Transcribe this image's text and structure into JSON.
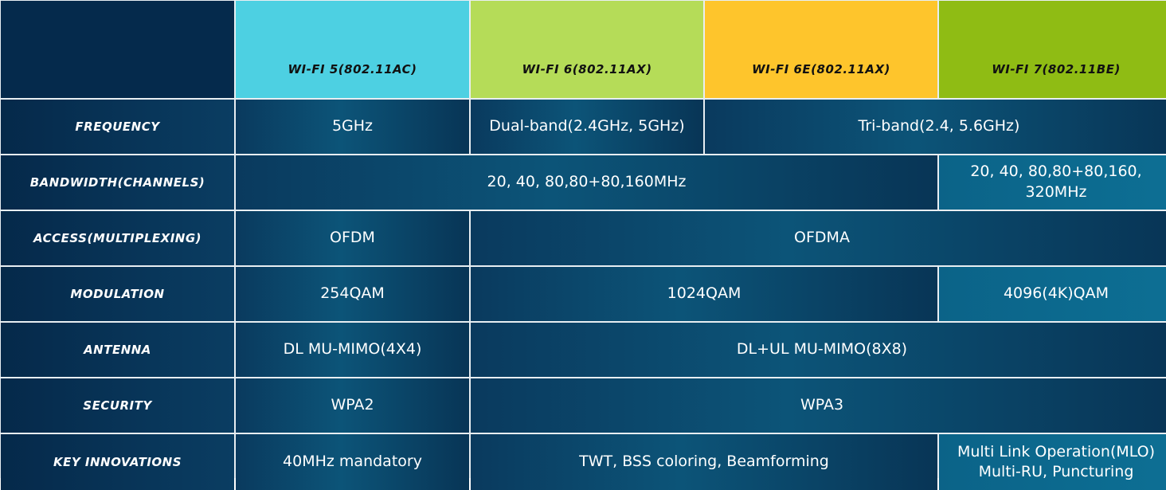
{
  "headers": [
    {
      "label": "Wi-Fi 5(802.11ac)",
      "color": "#4dd0e2"
    },
    {
      "label": "Wi-Fi 6(802.11ax)",
      "color": "#b5dc58"
    },
    {
      "label": "Wi-Fi 6E(802.11ax)",
      "color": "#fec52c"
    },
    {
      "label": "Wi-Fi 7(802.11be)",
      "color": "#8fbc14"
    }
  ],
  "rows": {
    "frequency": {
      "label": "Frequency",
      "wifi5": "5GHz",
      "wifi6": "Dual-band(2.4GHz, 5GHz)",
      "wifi6e_7": "Tri-band(2.4, 5.6GHz)"
    },
    "bandwidth": {
      "label": "Bandwidth(Channels)",
      "wifi5_6e": "20, 40, 80,80+80,160MHz",
      "wifi7": "20, 40, 80,80+80,160, 320MHz"
    },
    "access": {
      "label": "Access(Multiplexing)",
      "wifi5": "OFDM",
      "wifi6_7": "OFDMA"
    },
    "modulation": {
      "label": "Modulation",
      "wifi5": "254QAM",
      "wifi6_6e": "1024QAM",
      "wifi7": "4096(4K)QAM"
    },
    "antenna": {
      "label": "Antenna",
      "wifi5": "DL MU-MIMO(4X4)",
      "wifi6_7": "DL+UL MU-MIMO(8X8)"
    },
    "security": {
      "label": "Security",
      "wifi5": "WPA2",
      "wifi6_7": "WPA3"
    },
    "innovations": {
      "label": "Key Innovations",
      "wifi5": "40MHz mandatory",
      "wifi6_6e": "TWT, BSS coloring, Beamforming",
      "wifi7": "Multi Link Operation(MLO) Multi-RU, Puncturing"
    }
  }
}
